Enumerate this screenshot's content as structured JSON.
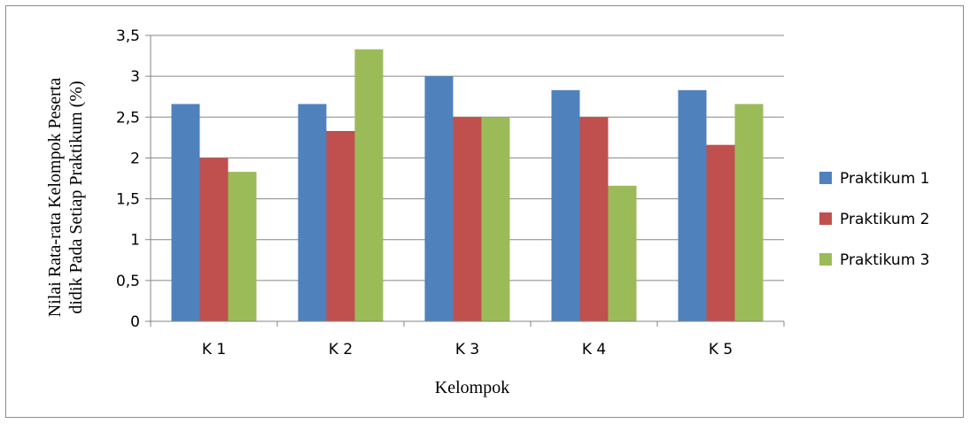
{
  "chart_data": {
    "type": "bar",
    "title": "",
    "xlabel": "Kelompok",
    "ylabel_lines": [
      "Nilai Rata-rata Kelompok Peserta",
      "didik Pada Setiap Praktikum (%)"
    ],
    "categories": [
      "K 1",
      "K 2",
      "K 3",
      "K 4",
      "K 5"
    ],
    "ylim": [
      0,
      3.5
    ],
    "yticks": [
      0,
      0.5,
      1,
      1.5,
      2,
      2.5,
      3,
      3.5
    ],
    "ytick_labels": [
      "0",
      "0,5",
      "1",
      "1,5",
      "2",
      "2,5",
      "3",
      "3,5"
    ],
    "grid": true,
    "legend_position": "right",
    "series": [
      {
        "name": "Praktikum 1",
        "color": "#4f81bd",
        "values": [
          2.66,
          2.66,
          3.0,
          2.83,
          2.83
        ]
      },
      {
        "name": "Praktikum 2",
        "color": "#c0504d",
        "values": [
          2.0,
          2.33,
          2.5,
          2.5,
          2.16
        ]
      },
      {
        "name": "Praktikum 3",
        "color": "#9bbb59",
        "values": [
          1.83,
          3.33,
          2.5,
          1.66,
          2.66
        ]
      }
    ]
  }
}
